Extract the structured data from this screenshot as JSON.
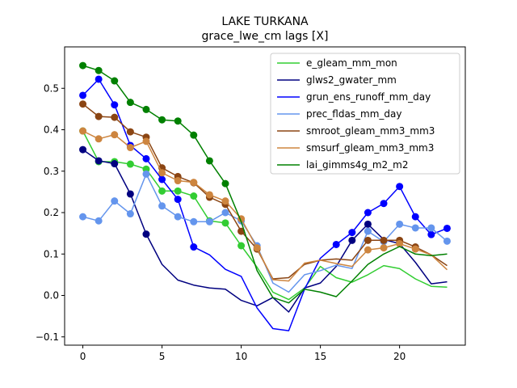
{
  "chart_data": {
    "type": "line",
    "title": "LAKE TURKANA",
    "subtitle": "grace_lwe_cm lags [X]",
    "xlabel": "",
    "ylabel": "",
    "xlim": [
      -1.15,
      24.15
    ],
    "ylim": [
      -0.12,
      0.6
    ],
    "xticks": [
      0,
      5,
      10,
      15,
      20
    ],
    "yticks": [
      -0.1,
      0.0,
      0.1,
      0.2,
      0.3,
      0.4,
      0.5
    ],
    "ytick_labels": [
      "−0.1",
      "0.0",
      "0.1",
      "0.2",
      "0.3",
      "0.4",
      "0.5"
    ],
    "grid": false,
    "legend_position": "upper-right",
    "x": [
      0,
      1,
      2,
      3,
      4,
      5,
      6,
      7,
      8,
      9,
      10,
      11,
      12,
      13,
      14,
      15,
      16,
      17,
      18,
      19,
      20,
      21,
      22,
      23
    ],
    "series": [
      {
        "name": "e_gleam_mm_mon",
        "color": "#32cd32",
        "values": [
          0.397,
          0.323,
          0.323,
          0.317,
          0.305,
          0.252,
          0.252,
          0.24,
          0.18,
          0.175,
          0.12,
          0.068,
          0.008,
          -0.01,
          0.018,
          0.07,
          0.043,
          0.032,
          0.05,
          0.072,
          0.065,
          0.04,
          0.022,
          0.02
        ],
        "markers": [
          true,
          true,
          true,
          true,
          true,
          true,
          true,
          true,
          true,
          true,
          true,
          false,
          false,
          false,
          false,
          false,
          false,
          false,
          false,
          false,
          false,
          false,
          false,
          false
        ]
      },
      {
        "name": "glws2_gwater_mm",
        "color": "#000080",
        "values": [
          0.352,
          0.325,
          0.318,
          0.245,
          0.148,
          0.075,
          0.037,
          0.025,
          0.018,
          0.015,
          -0.012,
          -0.025,
          -0.005,
          -0.04,
          0.018,
          0.03,
          0.07,
          0.133,
          0.172,
          0.135,
          0.125,
          0.08,
          0.028,
          0.033
        ],
        "markers": [
          true,
          true,
          true,
          true,
          true,
          false,
          false,
          false,
          false,
          false,
          false,
          false,
          false,
          false,
          false,
          false,
          false,
          true,
          true,
          false,
          false,
          false,
          false,
          false
        ]
      },
      {
        "name": "grun_ens_runoff_mm_day",
        "color": "#0000ff",
        "values": [
          0.483,
          0.522,
          0.46,
          0.362,
          0.33,
          0.28,
          0.232,
          0.117,
          0.098,
          0.063,
          0.046,
          -0.03,
          -0.08,
          -0.085,
          0.015,
          0.09,
          0.123,
          0.152,
          0.2,
          0.222,
          0.263,
          0.19,
          0.147,
          0.162
        ],
        "markers": [
          true,
          true,
          true,
          true,
          true,
          true,
          true,
          true,
          false,
          false,
          false,
          false,
          false,
          false,
          false,
          false,
          true,
          true,
          true,
          true,
          true,
          true,
          true,
          true
        ]
      },
      {
        "name": "prec_fldas_mm_day",
        "color": "#6495ed",
        "values": [
          0.19,
          0.18,
          0.228,
          0.197,
          0.293,
          0.216,
          0.19,
          0.178,
          0.178,
          0.2,
          0.18,
          0.12,
          0.03,
          0.008,
          0.05,
          0.06,
          0.073,
          0.065,
          0.155,
          0.13,
          0.172,
          0.163,
          0.163,
          0.131
        ],
        "markers": [
          true,
          true,
          true,
          true,
          true,
          true,
          true,
          true,
          true,
          true,
          true,
          true,
          false,
          false,
          false,
          false,
          false,
          false,
          true,
          true,
          true,
          true,
          true,
          true
        ]
      },
      {
        "name": "smroot_gleam_mm3_mm3",
        "color": "#8b4513",
        "values": [
          0.462,
          0.432,
          0.43,
          0.395,
          0.382,
          0.308,
          0.287,
          0.272,
          0.237,
          0.22,
          0.155,
          0.112,
          0.04,
          0.043,
          0.075,
          0.085,
          0.088,
          0.085,
          0.133,
          0.133,
          0.133,
          0.117,
          0.098,
          0.072
        ],
        "markers": [
          true,
          true,
          true,
          true,
          true,
          true,
          true,
          true,
          true,
          true,
          true,
          true,
          false,
          false,
          false,
          false,
          false,
          false,
          true,
          true,
          true,
          true,
          false,
          false
        ]
      },
      {
        "name": "smsurf_gleam_mm3_mm3",
        "color": "#cd853f",
        "values": [
          0.397,
          0.378,
          0.388,
          0.357,
          0.372,
          0.296,
          0.277,
          0.273,
          0.243,
          0.228,
          0.185,
          0.115,
          0.038,
          0.035,
          0.078,
          0.085,
          0.077,
          0.07,
          0.11,
          0.115,
          0.125,
          0.112,
          0.098,
          0.062
        ],
        "markers": [
          true,
          true,
          true,
          true,
          true,
          true,
          true,
          true,
          true,
          true,
          true,
          true,
          false,
          false,
          false,
          false,
          false,
          false,
          true,
          true,
          true,
          true,
          false,
          false
        ]
      },
      {
        "name": "lai_gimms4g_m2_m2",
        "color": "#008000",
        "values": [
          0.555,
          0.543,
          0.518,
          0.466,
          0.449,
          0.424,
          0.421,
          0.387,
          0.325,
          0.27,
          0.178,
          0.06,
          -0.005,
          -0.018,
          0.015,
          0.008,
          -0.003,
          0.035,
          0.075,
          0.1,
          0.118,
          0.1,
          0.096,
          0.1
        ],
        "markers": [
          true,
          true,
          true,
          true,
          true,
          true,
          true,
          true,
          true,
          true,
          false,
          false,
          false,
          false,
          false,
          false,
          false,
          false,
          false,
          false,
          false,
          false,
          false,
          false
        ]
      }
    ]
  }
}
